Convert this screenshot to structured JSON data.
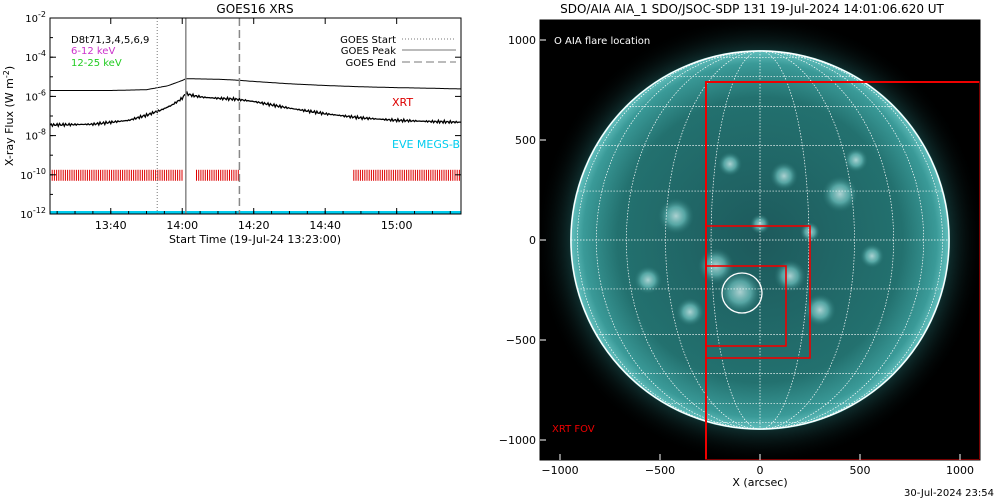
{
  "goes_panel": {
    "title": "GOES16 XRS",
    "ylabel_main": "X-ray Flux (W m",
    "ylabel_sup": "-2",
    "ylabel_close": ")",
    "xlabel": "Start Time (19-Jul-24 13:23:00)",
    "legend_left": [
      {
        "text": "D8t71,3,4,5,6,9",
        "color": "#000000"
      },
      {
        "text": "6-12 keV",
        "color": "#cc33cc"
      },
      {
        "text": "12-25 keV",
        "color": "#22cc22"
      }
    ],
    "legend_right": [
      {
        "text": "GOES Start",
        "style": "dotted"
      },
      {
        "text": "GOES Peak",
        "style": "solid"
      },
      {
        "text": "GOES End",
        "style": "dashed"
      }
    ],
    "xrt_label": "XRT",
    "eve_label": "EVE MEGS-B",
    "colors": {
      "xrt": "#dd0000",
      "eve": "#00ccee",
      "curve": "#000000",
      "markers": "#888888"
    }
  },
  "aia_panel": {
    "title": "SDO/AIA AIA_1 SDO/JSOC-SDP 131 19-Jul-2024 14:01:06.620 UT",
    "flare_legend": "O AIA flare location",
    "fov_label": "XRT FOV",
    "xlabel": "X (arcsec)",
    "colors": {
      "disk": "#2f8f8f",
      "grid": "#ffffff",
      "fov": "#ee0000",
      "label": "#ee0000"
    }
  },
  "footer": "30-Jul-2024 23:54",
  "chart_data": [
    {
      "type": "line",
      "title": "GOES16 XRS",
      "xlabel": "Start Time (19-Jul-24 13:23:00)",
      "ylabel": "X-ray Flux (W m^-2)",
      "yscale": "log",
      "xlim": [
        "13:23",
        "15:18"
      ],
      "ylim": [
        1e-12,
        0.01
      ],
      "x_ticks": [
        "13:40",
        "14:00",
        "14:20",
        "14:40",
        "15:00"
      ],
      "y_ticks": [
        "10^-2",
        "10^-4",
        "10^-6",
        "10^-8",
        "10^-10",
        "10^-12"
      ],
      "series": [
        {
          "name": "GOES Peak",
          "x": [
            "13:23",
            "13:40",
            "13:50",
            "13:56",
            "14:00",
            "14:01",
            "14:10",
            "14:15",
            "14:20",
            "14:30",
            "14:40",
            "14:50",
            "15:00",
            "15:10",
            "15:18"
          ],
          "y": [
            2e-06,
            2e-06,
            2.2e-06,
            3.5e-06,
            6.5e-06,
            8e-06,
            7.5e-06,
            6.8e-06,
            5.8e-06,
            4.4e-06,
            3.6e-06,
            3.1e-06,
            2.8e-06,
            2.6e-06,
            2.4e-06
          ]
        },
        {
          "name": "12-25 keV",
          "x": [
            "13:23",
            "13:35",
            "13:45",
            "13:50",
            "13:54",
            "13:57",
            "14:00",
            "14:01",
            "14:03",
            "14:06",
            "14:10",
            "14:15",
            "14:20",
            "14:30",
            "14:40",
            "14:50",
            "15:00",
            "15:10",
            "15:18"
          ],
          "y": [
            3.5e-08,
            3.8e-08,
            6e-08,
            1.1e-07,
            2e-07,
            3.5e-07,
            8e-07,
            1.4e-06,
            1.1e-06,
            9e-07,
            8e-07,
            7.2e-07,
            5.5e-07,
            2.5e-07,
            1.3e-07,
            8e-08,
            6e-08,
            5.2e-08,
            4.8e-08
          ]
        }
      ],
      "markers": {
        "goes_start": "13:53",
        "goes_peak": "14:01",
        "goes_end": "14:16"
      },
      "xrt_coverage": [
        [
          "13:23",
          "14:00"
        ],
        [
          "14:04",
          "14:16"
        ],
        [
          "14:48",
          "15:18"
        ]
      ],
      "xrt_level": 1e-10,
      "eve_megs_b_level": 1e-12
    },
    {
      "type": "image",
      "title": "SDO/AIA AIA_1 SDO/JSOC-SDP 131 19-Jul-2024 14:01:06.620 UT",
      "xlabel": "X (arcsec)",
      "xlim": [
        -1100,
        1100
      ],
      "ylim": [
        -1100,
        1100
      ],
      "x_ticks": [
        -1000,
        -500,
        0,
        500,
        1000
      ],
      "y_ticks": [
        1000,
        500,
        0,
        -500,
        -1000
      ],
      "solar_radius": 945,
      "flare_location": [
        -90,
        -265
      ],
      "flare_circle_radius": 100,
      "xrt_fov_boxes": [
        {
          "xmin": -270,
          "xmax": 1100,
          "ymin": -1100,
          "ymax": 790
        },
        {
          "xmin": -270,
          "xmax": 250,
          "ymin": -590,
          "ymax": 70
        },
        {
          "xmin": -270,
          "xmax": 130,
          "ymin": -530,
          "ymax": -130
        }
      ]
    }
  ]
}
